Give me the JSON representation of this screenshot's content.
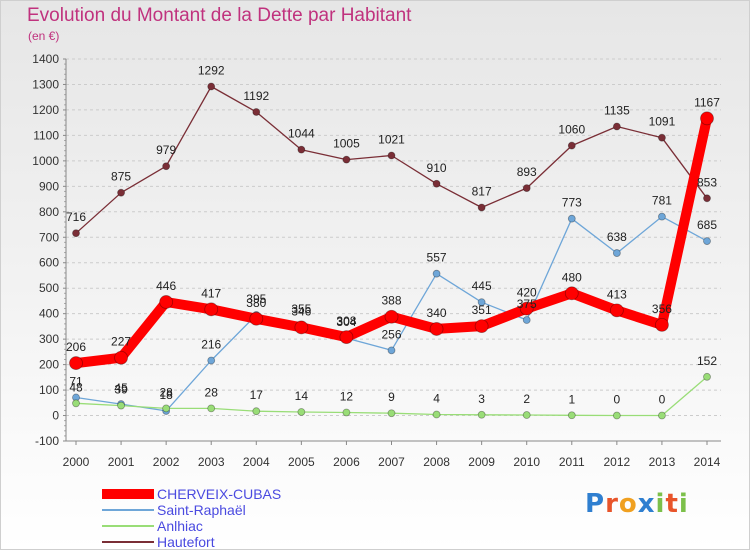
{
  "title": "Evolution du Montant de la Dette par Habitant",
  "subtitle": "(en €)",
  "logo_text": "Proxiti",
  "colors": {
    "title": "#c0327e",
    "cherveix": "#ff0000",
    "saint_raphael": "#6ea6d8",
    "anlhiac": "#99dd77",
    "hautefort": "#7a2e36",
    "grid": "#cccccc",
    "legend_text": "#4a4ae0"
  },
  "chart_data": {
    "type": "line",
    "title": "Evolution du Montant de la Dette par Habitant",
    "ylabel": "(en €)",
    "xlabel": "",
    "ylim": [
      -100,
      1400
    ],
    "ytick_step": 100,
    "grid": "horizontal dashed",
    "legend_position": "bottom-left",
    "categories": [
      "2000",
      "2001",
      "2002",
      "2003",
      "2004",
      "2005",
      "2006",
      "2007",
      "2008",
      "2009",
      "2010",
      "2011",
      "2012",
      "2013",
      "2014"
    ],
    "series": [
      {
        "name": "CHERVEIX-CUBAS",
        "color": "#ff0000",
        "values": [
          206,
          227,
          446,
          417,
          380,
          346,
          308,
          388,
          340,
          351,
          420,
          480,
          413,
          356,
          1167
        ]
      },
      {
        "name": "Saint-Raphaël",
        "color": "#6ea6d8",
        "values": [
          71,
          45,
          18,
          216,
          395,
          355,
          304,
          256,
          557,
          445,
          375,
          773,
          638,
          781,
          685
        ]
      },
      {
        "name": "Anlhiac",
        "color": "#99dd77",
        "values": [
          48,
          39,
          28,
          28,
          17,
          14,
          12,
          9,
          4,
          3,
          2,
          1,
          0,
          0,
          152
        ]
      },
      {
        "name": "Hautefort",
        "color": "#7a2e36",
        "values": [
          716,
          875,
          979,
          1292,
          1192,
          1044,
          1005,
          1021,
          910,
          817,
          893,
          1060,
          1135,
          1091,
          853
        ]
      }
    ]
  }
}
